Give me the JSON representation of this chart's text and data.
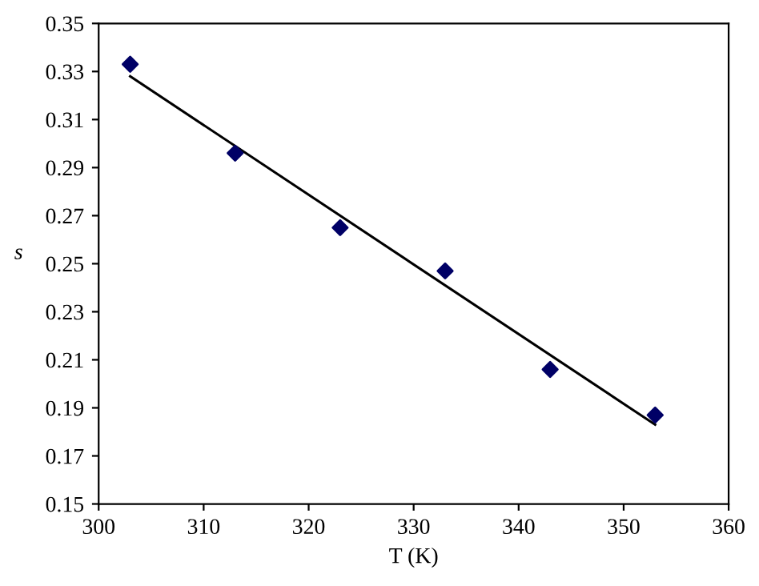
{
  "chart_data": {
    "type": "scatter",
    "xlabel": "T (K)",
    "ylabel": "s",
    "xlim": [
      300,
      360
    ],
    "xticks": [
      300,
      310,
      320,
      330,
      340,
      350,
      360
    ],
    "ylim": [
      0.15,
      0.35
    ],
    "yticks": [
      0.15,
      0.17,
      0.19,
      0.21,
      0.23,
      0.25,
      0.27,
      0.29,
      0.31,
      0.33,
      0.35
    ],
    "grid": false,
    "series": [
      {
        "marker": "diamond",
        "color": "#000066",
        "x": [
          303,
          313,
          323,
          333,
          343,
          353
        ],
        "values": [
          0.333,
          0.296,
          0.265,
          0.247,
          0.206,
          0.187
        ]
      },
      {
        "type": "line",
        "color": "#000000",
        "x": [
          303,
          353
        ],
        "values": [
          0.328,
          0.183
        ],
        "line_style": "solid"
      }
    ]
  }
}
